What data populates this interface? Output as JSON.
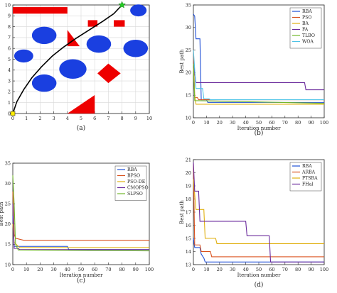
{
  "chart_data": [
    {
      "type": "scatter",
      "caption": "(a)",
      "xlim": [
        0,
        10
      ],
      "ylim": [
        0,
        10
      ],
      "x_ticks": [
        0,
        1,
        2,
        3,
        4,
        5,
        6,
        7,
        8,
        9,
        10
      ],
      "y_ticks": [
        0,
        1,
        2,
        3,
        4,
        5,
        6,
        7,
        8,
        9,
        10
      ],
      "grid": true,
      "colors": {
        "obstacle": "#ee0000",
        "circle": "#1a3fe0",
        "path": "#000000",
        "start": "#ffee00",
        "goal": "#22cc22"
      },
      "rects": [
        {
          "x": [
            0,
            4
          ],
          "y": [
            9.2,
            9.8
          ]
        },
        {
          "x": [
            5.5,
            6.2
          ],
          "y": [
            8.0,
            8.6
          ]
        },
        {
          "x": [
            7.4,
            8.2
          ],
          "y": [
            8.0,
            8.6
          ]
        }
      ],
      "triangles": [
        [
          [
            4,
            6.2
          ],
          [
            4,
            7.7
          ],
          [
            4.9,
            6.2
          ]
        ],
        [
          [
            4,
            0
          ],
          [
            6,
            1.7
          ],
          [
            6,
            0
          ]
        ]
      ],
      "diamonds": [
        [
          [
            6.2,
            3.7
          ],
          [
            7.0,
            4.6
          ],
          [
            7.9,
            3.7
          ],
          [
            7.0,
            2.8
          ]
        ]
      ],
      "circles": [
        {
          "cx": 9.2,
          "cy": 9.5,
          "rx": 0.6,
          "ry": 0.55
        },
        {
          "cx": 2.3,
          "cy": 7.2,
          "rx": 0.9,
          "ry": 0.8
        },
        {
          "cx": 6.3,
          "cy": 6.4,
          "rx": 0.9,
          "ry": 0.8
        },
        {
          "cx": 9.0,
          "cy": 6.0,
          "rx": 0.9,
          "ry": 0.8
        },
        {
          "cx": 0.8,
          "cy": 5.3,
          "rx": 0.7,
          "ry": 0.6
        },
        {
          "cx": 4.4,
          "cy": 4.1,
          "rx": 1.0,
          "ry": 0.9
        },
        {
          "cx": 2.3,
          "cy": 2.8,
          "rx": 0.9,
          "ry": 0.8
        }
      ],
      "path": [
        [
          0,
          0
        ],
        [
          0.3,
          1.1
        ],
        [
          0.8,
          2.2
        ],
        [
          1.4,
          3.3
        ],
        [
          2.1,
          4.3
        ],
        [
          2.9,
          5.3
        ],
        [
          3.7,
          6.1
        ],
        [
          4.6,
          6.9
        ],
        [
          5.6,
          7.7
        ],
        [
          6.6,
          8.5
        ],
        [
          7.4,
          9.2
        ],
        [
          8.0,
          10.0
        ]
      ],
      "start": [
        0,
        0
      ],
      "goal": [
        8,
        10
      ]
    },
    {
      "type": "line",
      "caption": "(b)",
      "xlabel": "Iteration number",
      "ylabel": "Best path",
      "xlim": [
        0,
        100
      ],
      "ylim": [
        10,
        35
      ],
      "x_ticks": [
        0,
        10,
        20,
        30,
        40,
        50,
        60,
        70,
        80,
        90,
        100
      ],
      "y_ticks": [
        10,
        15,
        20,
        25,
        30,
        35
      ],
      "legend_position": "top-right",
      "series": [
        {
          "name": "RBA",
          "color": "#1f4fd6",
          "points": [
            [
              0,
              33
            ],
            [
              1,
              32.5
            ],
            [
              2,
              27.5
            ],
            [
              5,
              27.5
            ],
            [
              6,
              14
            ],
            [
              10,
              14
            ],
            [
              11,
              13.4
            ],
            [
              100,
              13.4
            ]
          ]
        },
        {
          "name": "PSO",
          "color": "#d9521f",
          "points": [
            [
              0,
              25
            ],
            [
              1,
              14.5
            ],
            [
              3,
              14.5
            ],
            [
              4,
              14
            ],
            [
              100,
              14
            ]
          ]
        },
        {
          "name": "BA",
          "color": "#e0b012",
          "points": [
            [
              0,
              21
            ],
            [
              1,
              15
            ],
            [
              2,
              13
            ],
            [
              100,
              13
            ]
          ]
        },
        {
          "name": "FA",
          "color": "#6a2a9c",
          "points": [
            [
              0,
              22
            ],
            [
              2,
              17.8
            ],
            [
              85,
              17.8
            ],
            [
              86,
              16.2
            ],
            [
              100,
              16.2
            ]
          ]
        },
        {
          "name": "TLBO",
          "color": "#72b82c",
          "points": [
            [
              0,
              22
            ],
            [
              1,
              13.8
            ],
            [
              100,
              13.2
            ]
          ]
        },
        {
          "name": "WOA",
          "color": "#4fc3e6",
          "points": [
            [
              0,
              25
            ],
            [
              2,
              16.5
            ],
            [
              7,
              16.5
            ],
            [
              8,
              14.2
            ],
            [
              12,
              14.2
            ],
            [
              13,
              14
            ],
            [
              100,
              14
            ]
          ]
        }
      ]
    },
    {
      "type": "line",
      "caption": "(c)",
      "xlabel": "Iteration number",
      "ylabel": "Best path",
      "xlim": [
        0,
        100
      ],
      "ylim": [
        10,
        35
      ],
      "x_ticks": [
        0,
        10,
        20,
        30,
        40,
        50,
        60,
        70,
        80,
        90,
        100
      ],
      "y_ticks": [
        10,
        15,
        20,
        25,
        30,
        35
      ],
      "legend_position": "top-right",
      "series": [
        {
          "name": "RBA",
          "color": "#1f4fd6",
          "points": [
            [
              0,
              22
            ],
            [
              1,
              14.5
            ],
            [
              40,
              14.5
            ],
            [
              41,
              13.7
            ],
            [
              100,
              13.7
            ]
          ]
        },
        {
          "name": "BPSO",
          "color": "#d9521f",
          "points": [
            [
              0,
              28
            ],
            [
              1,
              17.5
            ],
            [
              2,
              16.5
            ],
            [
              8,
              16
            ],
            [
              100,
              16
            ]
          ]
        },
        {
          "name": "PSO-DE",
          "color": "#e0b012",
          "points": [
            [
              0,
              20
            ],
            [
              1,
              15.5
            ],
            [
              5,
              14.2
            ],
            [
              100,
              14.2
            ]
          ]
        },
        {
          "name": "CMOPSO",
          "color": "#6a2a9c",
          "points": [
            [
              0,
              25
            ],
            [
              1,
              14
            ],
            [
              4,
              14
            ],
            [
              5,
              13.7
            ],
            [
              100,
              13.7
            ]
          ]
        },
        {
          "name": "SLPSO",
          "color": "#72b82c",
          "points": [
            [
              0,
              32
            ],
            [
              1,
              25
            ],
            [
              2,
              15
            ],
            [
              4,
              13.6
            ],
            [
              100,
              13.4
            ]
          ]
        }
      ]
    },
    {
      "type": "line",
      "caption": "(d)",
      "xlabel": "Iteration number",
      "ylabel": "Best path",
      "xlim": [
        0,
        100
      ],
      "ylim": [
        13,
        21
      ],
      "x_ticks": [
        0,
        10,
        20,
        30,
        40,
        50,
        60,
        70,
        80,
        90,
        100
      ],
      "y_ticks": [
        13,
        14,
        15,
        16,
        17,
        18,
        19,
        20,
        21
      ],
      "legend_position": "top-right",
      "series": [
        {
          "name": "RBA",
          "color": "#1f4fd6",
          "points": [
            [
              0,
              15
            ],
            [
              1,
              14.3
            ],
            [
              5,
              14.3
            ],
            [
              6,
              13.8
            ],
            [
              8,
              13.5
            ],
            [
              9,
              13.2
            ],
            [
              100,
              13.2
            ]
          ]
        },
        {
          "name": "ARBA",
          "color": "#d9521f",
          "points": [
            [
              0,
              20.7
            ],
            [
              1,
              14.5
            ],
            [
              5,
              14.5
            ],
            [
              6,
              14
            ],
            [
              13,
              14
            ],
            [
              14,
              13.6
            ],
            [
              100,
              13.6
            ]
          ]
        },
        {
          "name": "PTSBA",
          "color": "#e0b012",
          "points": [
            [
              0,
              19.5
            ],
            [
              2,
              17.2
            ],
            [
              8,
              17.2
            ],
            [
              9,
              15
            ],
            [
              17,
              15
            ],
            [
              18,
              14.6
            ],
            [
              100,
              14.6
            ]
          ]
        },
        {
          "name": "FHal",
          "color": "#6a2a9c",
          "points": [
            [
              0,
              20.8
            ],
            [
              1,
              18.6
            ],
            [
              4,
              18.6
            ],
            [
              5,
              16.3
            ],
            [
              40,
              16.3
            ],
            [
              41,
              15.2
            ],
            [
              58,
              15.2
            ],
            [
              59,
              13.2
            ],
            [
              100,
              13.2
            ]
          ]
        }
      ]
    }
  ]
}
